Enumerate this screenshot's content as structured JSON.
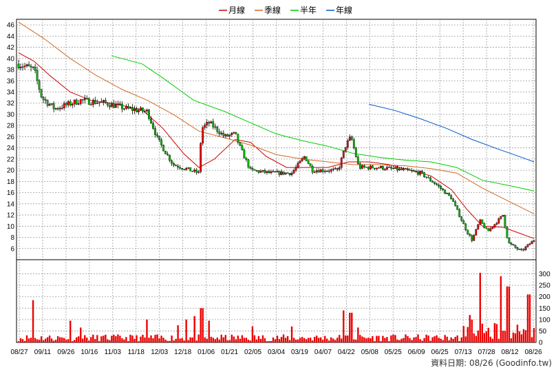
{
  "chart_data": {
    "type": "candlestick",
    "legend": [
      {
        "name": "月線",
        "color": "#cc0000"
      },
      {
        "name": "季線",
        "color": "#d2691e"
      },
      {
        "name": "半年",
        "color": "#00cc00"
      },
      {
        "name": "年線",
        "color": "#0055cc"
      }
    ],
    "price_axis": {
      "ylim": [
        4,
        47
      ],
      "ticks": [
        6,
        8,
        10,
        12,
        14,
        16,
        18,
        20,
        22,
        24,
        26,
        28,
        30,
        32,
        34,
        36,
        38,
        40,
        42,
        44,
        46
      ],
      "side": "left"
    },
    "volume_axis": {
      "ylim": [
        0,
        350
      ],
      "ticks": [
        0,
        50,
        100,
        150,
        200,
        250,
        300
      ],
      "side": "right"
    },
    "x_tick_labels": [
      "08/27",
      "09/11",
      "09/26",
      "10/16",
      "11/03",
      "11/18",
      "12/03",
      "12/18",
      "01/06",
      "01/21",
      "02/05",
      "03/04",
      "03/19",
      "04/07",
      "04/22",
      "05/08",
      "05/25",
      "06/09",
      "06/25",
      "07/13",
      "07/28",
      "08/12",
      "08/26"
    ],
    "close_anchors": [
      {
        "t": 0.0,
        "v": 39.0
      },
      {
        "t": 0.03,
        "v": 38.0
      },
      {
        "t": 0.045,
        "v": 33.0
      },
      {
        "t": 0.07,
        "v": 31.0
      },
      {
        "t": 0.12,
        "v": 32.5
      },
      {
        "t": 0.17,
        "v": 32.0
      },
      {
        "t": 0.21,
        "v": 31.0
      },
      {
        "t": 0.25,
        "v": 30.5
      },
      {
        "t": 0.27,
        "v": 25.5
      },
      {
        "t": 0.3,
        "v": 21.0
      },
      {
        "t": 0.35,
        "v": 19.5
      },
      {
        "t": 0.355,
        "v": 27.5
      },
      {
        "t": 0.37,
        "v": 28.5
      },
      {
        "t": 0.4,
        "v": 26.0
      },
      {
        "t": 0.42,
        "v": 26.5
      },
      {
        "t": 0.43,
        "v": 24.0
      },
      {
        "t": 0.45,
        "v": 20.0
      },
      {
        "t": 0.49,
        "v": 19.5
      },
      {
        "t": 0.53,
        "v": 19.5
      },
      {
        "t": 0.555,
        "v": 22.5
      },
      {
        "t": 0.57,
        "v": 20.0
      },
      {
        "t": 0.62,
        "v": 20.0
      },
      {
        "t": 0.635,
        "v": 24.5
      },
      {
        "t": 0.645,
        "v": 26.0
      },
      {
        "t": 0.66,
        "v": 20.5
      },
      {
        "t": 0.7,
        "v": 20.5
      },
      {
        "t": 0.75,
        "v": 20.0
      },
      {
        "t": 0.78,
        "v": 19.5
      },
      {
        "t": 0.81,
        "v": 17.5
      },
      {
        "t": 0.84,
        "v": 15.0
      },
      {
        "t": 0.87,
        "v": 9.0
      },
      {
        "t": 0.88,
        "v": 7.5
      },
      {
        "t": 0.895,
        "v": 11.0
      },
      {
        "t": 0.91,
        "v": 9.0
      },
      {
        "t": 0.94,
        "v": 12.0
      },
      {
        "t": 0.95,
        "v": 7.0
      },
      {
        "t": 0.975,
        "v": 5.5
      },
      {
        "t": 1.0,
        "v": 7.5
      }
    ],
    "moving_averages": {
      "月線": [
        {
          "t": 0,
          "v": 41.0
        },
        {
          "t": 0.03,
          "v": 39.5
        },
        {
          "t": 0.06,
          "v": 37.0
        },
        {
          "t": 0.1,
          "v": 34.0
        },
        {
          "t": 0.14,
          "v": 32.5
        },
        {
          "t": 0.19,
          "v": 31.8
        },
        {
          "t": 0.24,
          "v": 30.8
        },
        {
          "t": 0.28,
          "v": 27.5
        },
        {
          "t": 0.32,
          "v": 23.0
        },
        {
          "t": 0.35,
          "v": 20.5
        },
        {
          "t": 0.38,
          "v": 22.0
        },
        {
          "t": 0.42,
          "v": 25.5
        },
        {
          "t": 0.45,
          "v": 25.0
        },
        {
          "t": 0.48,
          "v": 22.5
        },
        {
          "t": 0.52,
          "v": 20.5
        },
        {
          "t": 0.56,
          "v": 20.5
        },
        {
          "t": 0.6,
          "v": 20.5
        },
        {
          "t": 0.64,
          "v": 21.5
        },
        {
          "t": 0.68,
          "v": 21.5
        },
        {
          "t": 0.72,
          "v": 21.0
        },
        {
          "t": 0.76,
          "v": 20.0
        },
        {
          "t": 0.8,
          "v": 19.0
        },
        {
          "t": 0.84,
          "v": 16.5
        },
        {
          "t": 0.87,
          "v": 13.0
        },
        {
          "t": 0.9,
          "v": 10.0
        },
        {
          "t": 0.94,
          "v": 9.8
        },
        {
          "t": 0.97,
          "v": 8.8
        },
        {
          "t": 1.0,
          "v": 7.8
        }
      ],
      "季線": [
        {
          "t": 0,
          "v": 46.5
        },
        {
          "t": 0.05,
          "v": 43.5
        },
        {
          "t": 0.1,
          "v": 40.0
        },
        {
          "t": 0.15,
          "v": 37.0
        },
        {
          "t": 0.2,
          "v": 34.5
        },
        {
          "t": 0.25,
          "v": 32.5
        },
        {
          "t": 0.3,
          "v": 30.0
        },
        {
          "t": 0.35,
          "v": 27.0
        },
        {
          "t": 0.4,
          "v": 25.8
        },
        {
          "t": 0.45,
          "v": 24.5
        },
        {
          "t": 0.5,
          "v": 22.8
        },
        {
          "t": 0.55,
          "v": 22.0
        },
        {
          "t": 0.6,
          "v": 21.5
        },
        {
          "t": 0.65,
          "v": 21.0
        },
        {
          "t": 0.7,
          "v": 21.0
        },
        {
          "t": 0.75,
          "v": 20.8
        },
        {
          "t": 0.8,
          "v": 20.3
        },
        {
          "t": 0.85,
          "v": 19.5
        },
        {
          "t": 0.9,
          "v": 16.8
        },
        {
          "t": 0.95,
          "v": 14.5
        },
        {
          "t": 1.0,
          "v": 12.2
        }
      ],
      "半年": [
        {
          "t": 0.18,
          "v": 40.5
        },
        {
          "t": 0.24,
          "v": 39.0
        },
        {
          "t": 0.28,
          "v": 36.5
        },
        {
          "t": 0.34,
          "v": 32.5
        },
        {
          "t": 0.4,
          "v": 30.5
        },
        {
          "t": 0.45,
          "v": 28.5
        },
        {
          "t": 0.5,
          "v": 26.5
        },
        {
          "t": 0.55,
          "v": 25.3
        },
        {
          "t": 0.6,
          "v": 24.3
        },
        {
          "t": 0.65,
          "v": 23.0
        },
        {
          "t": 0.7,
          "v": 22.3
        },
        {
          "t": 0.75,
          "v": 21.8
        },
        {
          "t": 0.8,
          "v": 21.5
        },
        {
          "t": 0.85,
          "v": 20.5
        },
        {
          "t": 0.9,
          "v": 18.2
        },
        {
          "t": 0.95,
          "v": 17.3
        },
        {
          "t": 1.0,
          "v": 16.3
        }
      ],
      "年線": [
        {
          "t": 0.68,
          "v": 31.8
        },
        {
          "t": 0.73,
          "v": 30.7
        },
        {
          "t": 0.78,
          "v": 29.2
        },
        {
          "t": 0.83,
          "v": 27.5
        },
        {
          "t": 0.88,
          "v": 25.5
        },
        {
          "t": 0.93,
          "v": 23.8
        },
        {
          "t": 0.97,
          "v": 22.5
        },
        {
          "t": 1.0,
          "v": 21.5
        }
      ]
    },
    "volume_spikes": [
      {
        "t": 0.028,
        "v": 185
      },
      {
        "t": 0.1,
        "v": 95
      },
      {
        "t": 0.12,
        "v": 65
      },
      {
        "t": 0.25,
        "v": 100
      },
      {
        "t": 0.31,
        "v": 75
      },
      {
        "t": 0.325,
        "v": 100
      },
      {
        "t": 0.34,
        "v": 115
      },
      {
        "t": 0.355,
        "v": 150
      },
      {
        "t": 0.37,
        "v": 95
      },
      {
        "t": 0.455,
        "v": 70
      },
      {
        "t": 0.53,
        "v": 70
      },
      {
        "t": 0.63,
        "v": 140
      },
      {
        "t": 0.645,
        "v": 130
      },
      {
        "t": 0.66,
        "v": 65
      },
      {
        "t": 0.875,
        "v": 120
      },
      {
        "t": 0.88,
        "v": 100
      },
      {
        "t": 0.895,
        "v": 305
      },
      {
        "t": 0.935,
        "v": 290
      },
      {
        "t": 0.95,
        "v": 245
      },
      {
        "t": 0.99,
        "v": 210
      }
    ],
    "footer": "資料日期: 08/26  (Goodinfo.tw)"
  }
}
